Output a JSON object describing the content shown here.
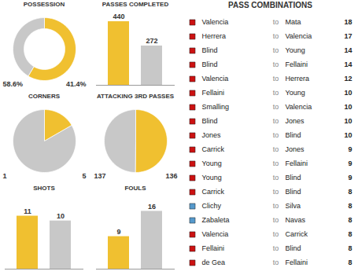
{
  "chart_data": [
    {
      "type": "donut",
      "title": "POSSESSION",
      "categories": [
        null,
        null
      ],
      "values": [
        58.6,
        41.4
      ],
      "value_labels": [
        "58.6%",
        "41.4%"
      ],
      "colors": [
        "#f0c030",
        "#c8c8c8"
      ],
      "data_labels": true
    },
    {
      "type": "bar",
      "title": "PASSES COMPLETED",
      "categories": [
        null,
        null
      ],
      "values": [
        440,
        272
      ],
      "colors": [
        "#f0c030",
        "#c8c8c8"
      ],
      "ylim": [
        0,
        500
      ],
      "tick_labels": false,
      "data_labels": true
    },
    {
      "type": "pie",
      "title": "CORNERS",
      "categories": [
        null,
        null
      ],
      "values": [
        1,
        5
      ],
      "colors": [
        "#f0c030",
        "#c8c8c8"
      ],
      "data_labels": true
    },
    {
      "type": "pie",
      "title": "ATTACKING 3RD PASSES",
      "categories": [
        null,
        null
      ],
      "values": [
        137,
        136
      ],
      "colors": [
        "#f0c030",
        "#c8c8c8"
      ],
      "data_labels": true
    },
    {
      "type": "bar",
      "title": "SHOTS",
      "categories": [
        null,
        null
      ],
      "values": [
        11,
        10
      ],
      "colors": [
        "#f0c030",
        "#c8c8c8"
      ],
      "ylim": [
        0,
        15
      ],
      "tick_labels": false,
      "data_labels": true
    },
    {
      "type": "bar",
      "title": "FOULS",
      "categories": [
        null,
        null
      ],
      "values": [
        9,
        16
      ],
      "colors": [
        "#f0c030",
        "#c8c8c8"
      ],
      "ylim": [
        0,
        20
      ],
      "tick_labels": false,
      "data_labels": true
    },
    {
      "type": "table",
      "title": "PASS COMBINATIONS",
      "annotation": "to",
      "from": [
        "Valencia",
        "Herrera",
        "Blind",
        "Blind",
        "Valencia",
        "Fellaini",
        "Smalling",
        "Blind",
        "Jones",
        "Carrick",
        "Young",
        "Young",
        "Carrick",
        "Clichy",
        "Zabaleta",
        "Valencia",
        "Fellaini",
        "de Gea"
      ],
      "to": [
        "Mata",
        "Valencia",
        "Young",
        "Fellaini",
        "Herrera",
        "Young",
        "Valencia",
        "Jones",
        "Blind",
        "Jones",
        "Fellaini",
        "Blind",
        "Blind",
        "Silva",
        "Navas",
        "Carrick",
        "Blind",
        "Fellaini"
      ],
      "values": [
        18,
        17,
        14,
        14,
        12,
        10,
        10,
        10,
        10,
        9,
        9,
        9,
        8,
        8,
        8,
        8,
        8,
        8
      ],
      "colors": [
        "#cc1111",
        "#cc1111",
        "#cc1111",
        "#cc1111",
        "#cc1111",
        "#cc1111",
        "#cc1111",
        "#cc1111",
        "#cc1111",
        "#cc1111",
        "#cc1111",
        "#cc1111",
        "#cc1111",
        "#5599cc",
        "#5599cc",
        "#cc1111",
        "#cc1111",
        "#cc1111"
      ],
      "tick_labels": false,
      "data_labels": true
    }
  ]
}
